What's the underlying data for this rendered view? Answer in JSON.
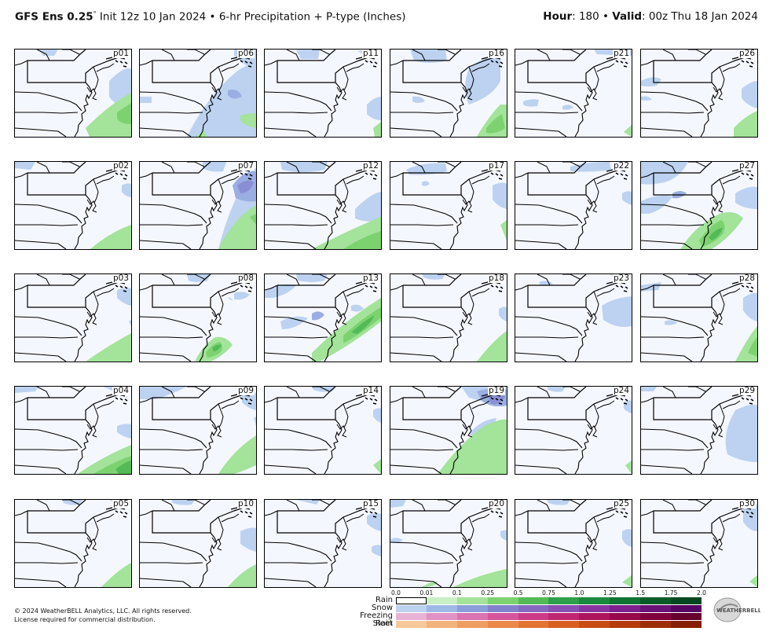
{
  "header": {
    "model": "GFS Ens 0.25",
    "init": "Init 12z 10 Jan 2024",
    "product": "6-hr Precipitation + P-type (Inches)",
    "hour_label": "Hour",
    "hour_value": ": 180",
    "valid_label": "Valid",
    "valid_value": ": 00z Thu 18 Jan 2024"
  },
  "members": [
    "p01",
    "p06",
    "p11",
    "p16",
    "p21",
    "p26",
    "p02",
    "p07",
    "p12",
    "p17",
    "p22",
    "p27",
    "p03",
    "p08",
    "p13",
    "p18",
    "p23",
    "p28",
    "p04",
    "p09",
    "p14",
    "p19",
    "p24",
    "p29",
    "p05",
    "p10",
    "p15",
    "p20",
    "p25",
    "p30"
  ],
  "legend": {
    "ticks": [
      "0.0",
      "0.01",
      "0.1",
      "0.25",
      "0.5",
      "0.75",
      "1.0",
      "1.25",
      "1.5",
      "1.75",
      "2.0"
    ],
    "rows": [
      "Rain",
      "Snow",
      "Freezing Rain",
      "Sleet"
    ],
    "colors": {
      "rain": [
        "#ffffff",
        "#c9efc4",
        "#a3e39a",
        "#7dd270",
        "#52bb57",
        "#2ea04a",
        "#1c8a3c",
        "#0f7433",
        "#075c28",
        "#034820"
      ],
      "snow": [
        "#bcd2f0",
        "#9fb9e6",
        "#8a9fd9",
        "#8282cc",
        "#8768c0",
        "#8a4fb2",
        "#8a34a1",
        "#7e208d",
        "#6c1178",
        "#560462"
      ],
      "frz": [
        "#e8b2d4",
        "#e192c4",
        "#d973b1",
        "#d5559d",
        "#cc3b88",
        "#c02672",
        "#ad155e",
        "#97094c",
        "#7f023c",
        "#66002e"
      ],
      "sleet": [
        "#f6c89a",
        "#f3b37c",
        "#ef9e61",
        "#ea894a",
        "#e37434",
        "#d85f22",
        "#c94c15",
        "#b53b0d",
        "#9e2c07",
        "#862003"
      ]
    }
  },
  "footer": {
    "copyright": "© 2024 WeatherBELL Analytics, LLC. All rights reserved.",
    "license": "License required for commercial distribution.",
    "logo_text": "WEATHERBELL"
  }
}
